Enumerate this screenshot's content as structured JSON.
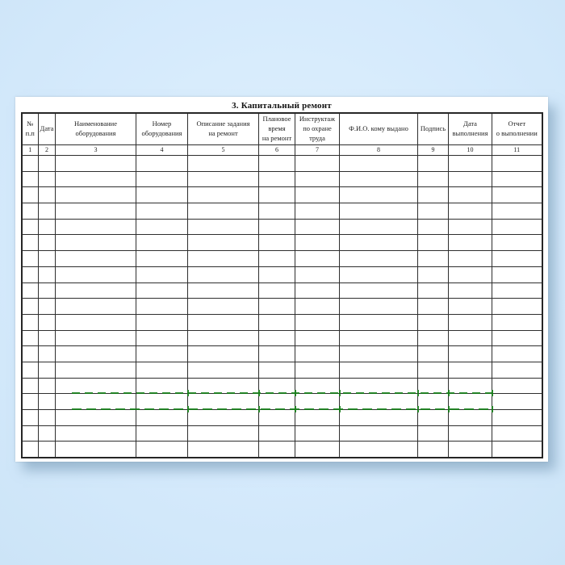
{
  "page": {
    "title": "3. Капитальный ремонт"
  },
  "table": {
    "columns": [
      {
        "label": "№\nп.п",
        "num": "1"
      },
      {
        "label": "Дата",
        "num": "2"
      },
      {
        "label": "Наименование\nоборудования",
        "num": "3"
      },
      {
        "label": "Номер\nоборудования",
        "num": "4"
      },
      {
        "label": "Описание задания\nна ремонт",
        "num": "5"
      },
      {
        "label": "Плановое\nвремя\nна ремонт",
        "num": "6"
      },
      {
        "label": "Инструктаж\nпо охране\nтруда",
        "num": "7"
      },
      {
        "label": "Ф.И.О. кому выдано",
        "num": "8"
      },
      {
        "label": "Подпись",
        "num": "9"
      },
      {
        "label": "Дата\nвыполнения",
        "num": "10"
      },
      {
        "label": "Отчет\nо выполнении",
        "num": "11"
      }
    ],
    "empty_rows": 19,
    "empty_cell_value": ""
  },
  "watermark": {
    "description": "green dashed scan artifact lines",
    "color": "#17801a"
  }
}
